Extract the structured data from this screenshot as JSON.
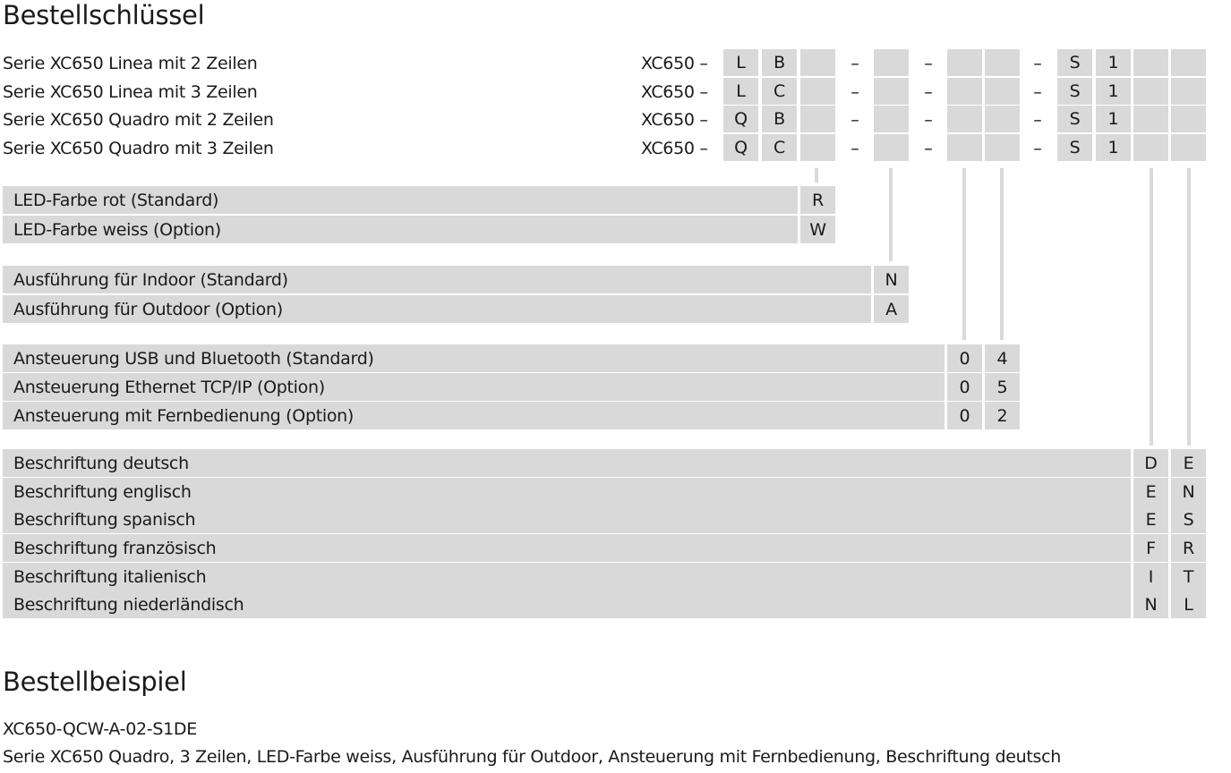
{
  "headings": {
    "key": "Bestellschlüssel",
    "example": "Bestellbeispiel"
  },
  "series": [
    {
      "label": "Serie XC650 Linea mit 2 Zeilen",
      "prefix": "XC650 –",
      "c1": "L",
      "c2": "B",
      "s": "S",
      "n": "1"
    },
    {
      "label": "Serie XC650 Linea mit 3 Zeilen",
      "prefix": "XC650 –",
      "c1": "L",
      "c2": "C",
      "s": "S",
      "n": "1"
    },
    {
      "label": "Serie XC650 Quadro mit 2 Zeilen",
      "prefix": "XC650 –",
      "c1": "Q",
      "c2": "B",
      "s": "S",
      "n": "1"
    },
    {
      "label": "Serie XC650 Quadro mit 3 Zeilen",
      "prefix": "XC650 –",
      "c1": "Q",
      "c2": "C",
      "s": "S",
      "n": "1"
    }
  ],
  "dash": "–",
  "led": [
    {
      "label": "LED-Farbe rot (Standard)",
      "code": "R"
    },
    {
      "label": "LED-Farbe weiss (Option)",
      "code": "W"
    }
  ],
  "execution": [
    {
      "label": "Ausführung für Indoor (Standard)",
      "code": "N"
    },
    {
      "label": "Ausführung für Outdoor (Option)",
      "code": "A"
    }
  ],
  "control": [
    {
      "label": "Ansteuerung USB und Bluetooth (Standard)",
      "d1": "0",
      "d2": "4"
    },
    {
      "label": "Ansteuerung Ethernet TCP/IP (Option)",
      "d1": "0",
      "d2": "5"
    },
    {
      "label": "Ansteuerung mit Fernbedienung (Option)",
      "d1": "0",
      "d2": "2"
    }
  ],
  "labeling": [
    {
      "label": "Beschriftung deutsch",
      "l1": "D",
      "l2": "E"
    },
    {
      "label": "Beschriftung englisch",
      "l1": "E",
      "l2": "N"
    },
    {
      "label": "Beschriftung spanisch",
      "l1": "E",
      "l2": "S"
    },
    {
      "label": "Beschriftung französisch",
      "l1": "F",
      "l2": "R"
    },
    {
      "label": "Beschriftung italienisch",
      "l1": "I",
      "l2": "T"
    },
    {
      "label": "Beschriftung niederländisch",
      "l1": "N",
      "l2": "L"
    }
  ],
  "example": {
    "code": "XC650-QCW-A-02-S1DE",
    "description": "Serie XC650 Quadro, 3 Zeilen, LED-Farbe weiss, Ausführung für Outdoor, Ansteuerung mit Fernbedienung, Beschriftung deutsch"
  }
}
